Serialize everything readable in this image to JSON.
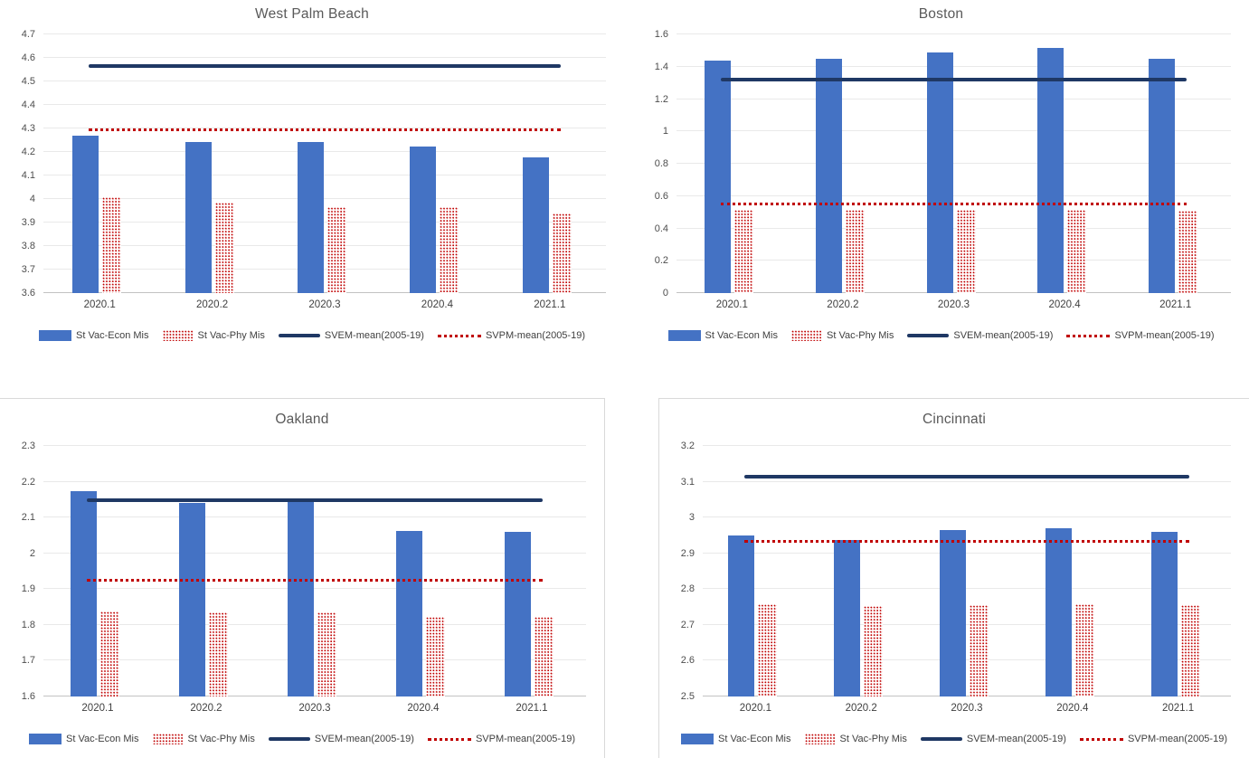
{
  "colors": {
    "bar_blue": "#4472C4",
    "mean_line_navy": "#1F3864",
    "red": "#C00000",
    "gridline": "#E9E9E9",
    "title_text": "#595959"
  },
  "legend_labels": [
    "St Vac-Econ Mis",
    "St Vac-Phy Mis",
    "SVEM-mean(2005-19)",
    "SVPM-mean(2005-19)"
  ],
  "chart_data": [
    {
      "type": "bar",
      "title": "West Palm Beach",
      "categories": [
        "2020.1",
        "2020.2",
        "2020.3",
        "2020.4",
        "2021.1"
      ],
      "series": [
        {
          "name": "St Vac-Econ Mis",
          "style": "solid-blue-bar",
          "values": [
            4.271,
            4.244,
            4.244,
            4.224,
            4.176
          ]
        },
        {
          "name": "St Vac-Phy Mis",
          "style": "red-dot-pattern-bar",
          "values": [
            4.008,
            3.984,
            3.966,
            3.966,
            3.938
          ]
        }
      ],
      "lines": [
        {
          "name": "SVEM-mean(2005-19)",
          "style": "solid-navy",
          "value": 4.564
        },
        {
          "name": "SVPM-mean(2005-19)",
          "style": "dotted-red",
          "value": 4.295
        }
      ],
      "ylim": [
        3.6,
        4.7
      ],
      "ytick_step": 0.1,
      "ytick_labels": [
        "3.6",
        "3.7",
        "3.8",
        "3.9",
        "4",
        "4.1",
        "4.2",
        "4.3",
        "4.4",
        "4.5",
        "4.6",
        "4.7"
      ],
      "grid": true,
      "legend_position": "bottom"
    },
    {
      "type": "bar",
      "title": "Boston",
      "categories": [
        "2020.1",
        "2020.2",
        "2020.3",
        "2020.4",
        "2021.1"
      ],
      "series": [
        {
          "name": "St Vac-Econ Mis",
          "style": "solid-blue-bar",
          "values": [
            1.437,
            1.449,
            1.489,
            1.517,
            1.447
          ]
        },
        {
          "name": "St Vac-Phy Mis",
          "style": "red-dot-pattern-bar",
          "values": [
            0.517,
            0.515,
            0.515,
            0.515,
            0.508
          ]
        }
      ],
      "lines": [
        {
          "name": "SVEM-mean(2005-19)",
          "style": "solid-navy",
          "value": 1.32
        },
        {
          "name": "SVPM-mean(2005-19)",
          "style": "dotted-red",
          "value": 0.553
        }
      ],
      "ylim": [
        0,
        1.6
      ],
      "ytick_step": 0.2,
      "ytick_labels": [
        "0",
        "0.2",
        "0.4",
        "0.6",
        "0.8",
        "1",
        "1.2",
        "1.4",
        "1.6"
      ],
      "grid": true,
      "legend_position": "bottom"
    },
    {
      "type": "bar",
      "title": "Oakland",
      "categories": [
        "2020.1",
        "2020.2",
        "2020.3",
        "2020.4",
        "2021.1"
      ],
      "series": [
        {
          "name": "St Vac-Econ Mis",
          "style": "solid-blue-bar",
          "values": [
            2.174,
            2.142,
            2.149,
            2.062,
            2.059
          ]
        },
        {
          "name": "St Vac-Phy Mis",
          "style": "red-dot-pattern-bar",
          "values": [
            1.838,
            1.834,
            1.835,
            1.822,
            1.822
          ]
        }
      ],
      "lines": [
        {
          "name": "SVEM-mean(2005-19)",
          "style": "solid-navy",
          "value": 2.149
        },
        {
          "name": "SVPM-mean(2005-19)",
          "style": "dotted-red",
          "value": 1.925
        }
      ],
      "ylim": [
        1.6,
        2.3
      ],
      "ytick_step": 0.1,
      "ytick_labels": [
        "1.6",
        "1.7",
        "1.8",
        "1.9",
        "2",
        "2.1",
        "2.2",
        "2.3"
      ],
      "grid": true,
      "legend_position": "bottom"
    },
    {
      "type": "bar",
      "title": "Cincinnati",
      "categories": [
        "2020.1",
        "2020.2",
        "2020.3",
        "2020.4",
        "2021.1"
      ],
      "series": [
        {
          "name": "St Vac-Econ Mis",
          "style": "solid-blue-bar",
          "values": [
            2.95,
            2.937,
            2.966,
            2.971,
            2.961
          ]
        },
        {
          "name": "St Vac-Phy Mis",
          "style": "red-dot-pattern-bar",
          "values": [
            2.757,
            2.754,
            2.755,
            2.757,
            2.756
          ]
        }
      ],
      "lines": [
        {
          "name": "SVEM-mean(2005-19)",
          "style": "solid-navy",
          "value": 3.115
        },
        {
          "name": "SVPM-mean(2005-19)",
          "style": "dotted-red",
          "value": 2.934
        }
      ],
      "ylim": [
        2.5,
        3.2
      ],
      "ytick_step": 0.1,
      "ytick_labels": [
        "2.5",
        "2.6",
        "2.7",
        "2.8",
        "2.9",
        "3",
        "3.1",
        "3.2"
      ],
      "grid": true,
      "legend_position": "bottom"
    }
  ]
}
